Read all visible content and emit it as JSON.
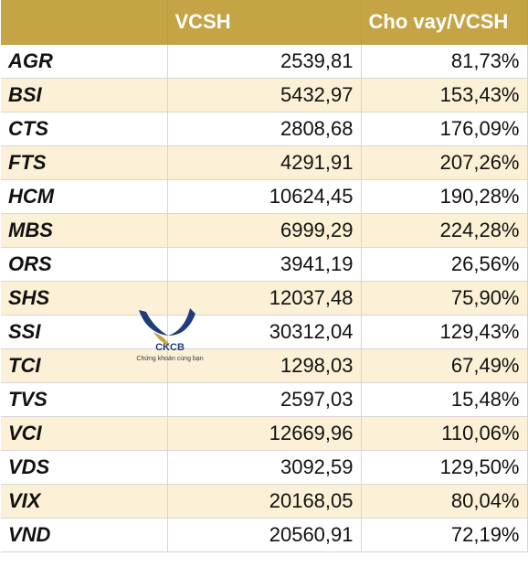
{
  "table": {
    "headers": [
      "",
      "VCSH",
      "Cho vay/VCSH"
    ],
    "rows": [
      [
        "AGR",
        "2539,81",
        "81,73%"
      ],
      [
        "BSI",
        "5432,97",
        "153,43%"
      ],
      [
        "CTS",
        "2808,68",
        "176,09%"
      ],
      [
        "FTS",
        "4291,91",
        "207,26%"
      ],
      [
        "HCM",
        "10624,45",
        "190,28%"
      ],
      [
        "MBS",
        "6999,29",
        "224,28%"
      ],
      [
        "ORS",
        "3941,19",
        "26,56%"
      ],
      [
        "SHS",
        "12037,48",
        "75,90%"
      ],
      [
        "SSI",
        "30312,04",
        "129,43%"
      ],
      [
        "TCI",
        "1298,03",
        "67,49%"
      ],
      [
        "TVS",
        "2597,03",
        "15,48%"
      ],
      [
        "VCI",
        "12669,96",
        "110,06%"
      ],
      [
        "VDS",
        "3092,59",
        "129,50%"
      ],
      [
        "VIX",
        "20168,05",
        "80,04%"
      ],
      [
        "VND",
        "20560,91",
        "72,19%"
      ]
    ]
  },
  "watermark": {
    "brand": "CKCB",
    "tagline": "Chứng khoán cùng bạn",
    "color": "#1f3d7a"
  },
  "colors": {
    "header_bg": "#c4a445",
    "stripe_bg": "#fcf1d6"
  }
}
